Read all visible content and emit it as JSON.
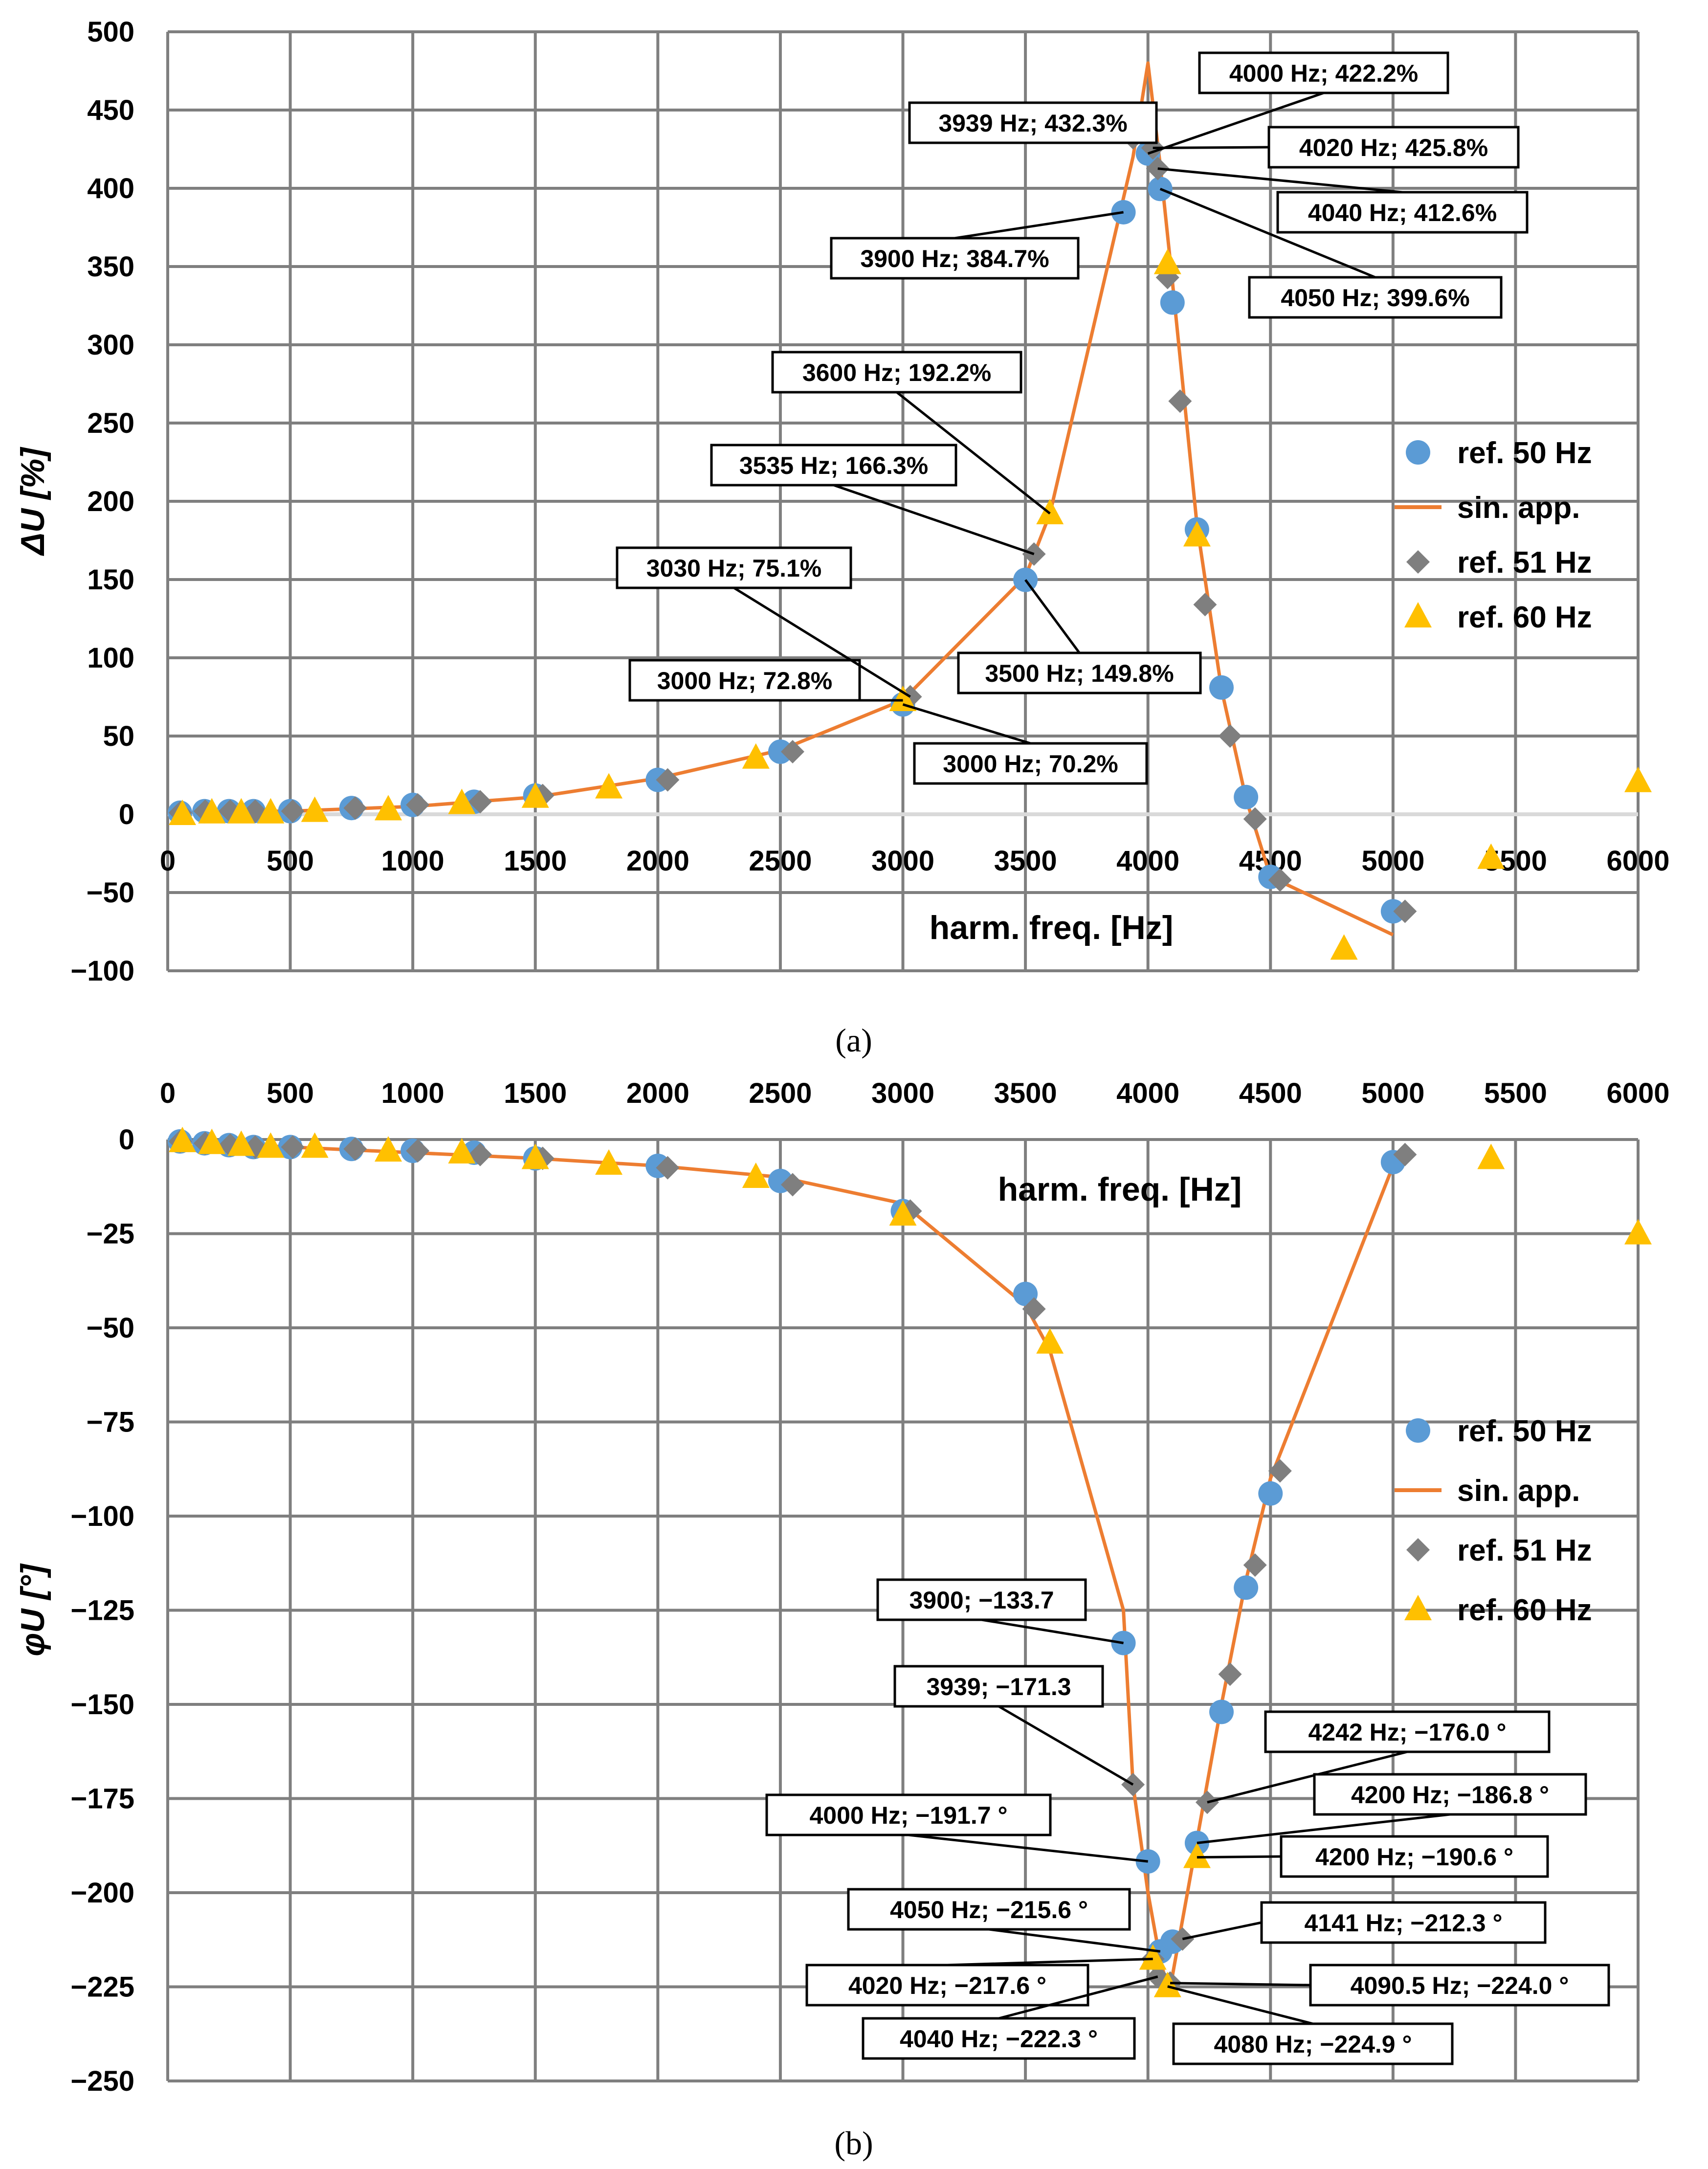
{
  "colors": {
    "ref50": "#5B9BD5",
    "sin_app": "#ED7D31",
    "ref51": "#7F7F7F",
    "ref60": "#FFC000",
    "grid": "#7F7F7F"
  },
  "legend": [
    "ref. 50 Hz",
    "sin. app.",
    "ref. 51 Hz",
    "ref. 60 Hz"
  ],
  "panel_labels": [
    "(a)",
    "(b)"
  ],
  "chart_data": [
    {
      "type": "scatter",
      "ylabel": "ΔU [%]",
      "xlabel": "harm. freq. [Hz]",
      "xlim": [
        0,
        6000
      ],
      "ylim": [
        -100,
        500
      ],
      "xticks": [
        0,
        500,
        1000,
        1500,
        2000,
        2500,
        3000,
        3500,
        4000,
        4500,
        5000,
        5500,
        6000
      ],
      "yticks": [
        -100,
        -50,
        0,
        50,
        100,
        150,
        200,
        250,
        300,
        350,
        400,
        450,
        500
      ],
      "grid": true,
      "legend_position": "right",
      "series": [
        {
          "name": "ref. 50 Hz",
          "marker": "circle",
          "x": [
            50,
            150,
            250,
            350,
            500,
            750,
            1000,
            1250,
            1500,
            2000,
            2500,
            3000,
            3500,
            3900,
            4000,
            4050,
            4100,
            4200,
            4300,
            4400,
            4500,
            5000
          ],
          "y": [
            1,
            2,
            2,
            2,
            2,
            4,
            6,
            8,
            12,
            22,
            40,
            70.2,
            149.8,
            384.7,
            422.2,
            399.6,
            327,
            182,
            81,
            11,
            -40,
            -62
          ]
        },
        {
          "name": "sin. app.",
          "marker": "line",
          "x": [
            50,
            250,
            500,
            1000,
            1500,
            2000,
            2500,
            3000,
            3500,
            3600,
            3939,
            4000,
            4050,
            4100,
            4200,
            4300,
            4400,
            4500,
            5000
          ],
          "y": [
            1,
            2,
            2,
            5,
            11,
            23,
            41,
            73,
            152,
            192,
            420,
            480,
            415,
            340,
            185,
            80,
            10,
            -40,
            -77
          ]
        },
        {
          "name": "ref. 51 Hz",
          "marker": "diamond",
          "x": [
            51,
            153,
            255,
            357,
            510,
            765,
            1020,
            1275,
            1530,
            2040,
            2550,
            3030,
            3535,
            3939,
            4020,
            4040,
            4080,
            4131,
            4233,
            4335,
            4437,
            4539,
            5049
          ],
          "y": [
            1,
            2,
            2,
            2,
            2,
            4,
            6,
            8,
            12,
            22,
            40,
            75.1,
            166.3,
            432.3,
            425.8,
            412.6,
            343,
            264,
            134,
            50,
            -3,
            -42,
            -62
          ]
        },
        {
          "name": "ref. 60 Hz",
          "marker": "triangle",
          "x": [
            60,
            180,
            300,
            420,
            600,
            900,
            1200,
            1500,
            1800,
            2400,
            3000,
            3600,
            4080,
            4200,
            4800,
            5400,
            6000
          ],
          "y": [
            0,
            1,
            1,
            1,
            2,
            3,
            7,
            11,
            17,
            36,
            72.8,
            192.2,
            352,
            178,
            -86,
            -28,
            21
          ]
        }
      ],
      "annotations": [
        "3000 Hz; 70.2%",
        "3000 Hz; 72.8%",
        "3030 Hz; 75.1%",
        "3500 Hz; 149.8%",
        "3535 Hz; 166.3%",
        "3600 Hz; 192.2%",
        "3900 Hz; 384.7%",
        "3939 Hz; 432.3%",
        "4000 Hz; 422.2%",
        "4020 Hz; 425.8%",
        "4040 Hz; 412.6%",
        "4050 Hz; 399.6%"
      ]
    },
    {
      "type": "scatter",
      "ylabel": "φU [°]",
      "xlabel": "harm. freq. [Hz]",
      "xlim": [
        0,
        6000
      ],
      "ylim": [
        -250,
        0
      ],
      "xticks": [
        0,
        500,
        1000,
        1500,
        2000,
        2500,
        3000,
        3500,
        4000,
        4500,
        5000,
        5500,
        6000
      ],
      "yticks": [
        -250,
        -225,
        -200,
        -175,
        -150,
        -125,
        -100,
        -75,
        -50,
        -25,
        0
      ],
      "grid": true,
      "legend_position": "right",
      "series": [
        {
          "name": "ref. 50 Hz",
          "marker": "circle",
          "x": [
            50,
            150,
            250,
            350,
            500,
            750,
            1000,
            1250,
            1500,
            2000,
            2500,
            3000,
            3500,
            3900,
            4000,
            4050,
            4100,
            4200,
            4300,
            4400,
            4500,
            5000
          ],
          "y": [
            -0.5,
            -1,
            -1.5,
            -2,
            -2,
            -2.5,
            -3,
            -3.5,
            -5,
            -7,
            -11,
            -19,
            -41,
            -133.7,
            -191.7,
            -215.6,
            -213,
            -186.8,
            -152,
            -119,
            -94,
            -6
          ]
        },
        {
          "name": "sin. app.",
          "marker": "line",
          "x": [
            50,
            500,
            1000,
            1500,
            2000,
            2500,
            3000,
            3500,
            3600,
            3900,
            3939,
            4000,
            4050,
            4080,
            4100,
            4200,
            4300,
            4400,
            4500,
            5000
          ],
          "y": [
            -0.5,
            -2,
            -3.5,
            -5,
            -7,
            -10,
            -17,
            -44,
            -56,
            -125,
            -171.3,
            -200,
            -218,
            -224.9,
            -222,
            -186,
            -150,
            -117,
            -90,
            -7
          ]
        },
        {
          "name": "ref. 51 Hz",
          "marker": "diamond",
          "x": [
            51,
            153,
            255,
            357,
            510,
            765,
            1020,
            1275,
            1530,
            2040,
            2550,
            3030,
            3535,
            3939,
            4020,
            4040,
            4090.5,
            4141,
            4242,
            4335,
            4437,
            4539,
            5049
          ],
          "y": [
            -0.5,
            -1,
            -1.5,
            -2,
            -2,
            -2.5,
            -3,
            -4,
            -5,
            -7.5,
            -12,
            -19,
            -45,
            -171.3,
            -217.6,
            -222.3,
            -224.0,
            -212.3,
            -176.0,
            -142,
            -113,
            -88,
            -4
          ]
        },
        {
          "name": "ref. 60 Hz",
          "marker": "triangle",
          "x": [
            60,
            180,
            300,
            420,
            600,
            900,
            1200,
            1500,
            1800,
            2400,
            3000,
            3600,
            4020,
            4080,
            4200,
            5400,
            6000
          ],
          "y": [
            -0.5,
            -1,
            -1.5,
            -2,
            -2,
            -3,
            -3.5,
            -5,
            -6.5,
            -10,
            -20,
            -54,
            -217.6,
            -224.9,
            -190.6,
            -5,
            -25
          ]
        }
      ],
      "annotations": [
        "3900; −133.7",
        "3939; −171.3",
        "4000 Hz; −191.7 °",
        "4242 Hz; −176.0 °",
        "4200 Hz; −186.8 °",
        "4200 Hz; −190.6 °",
        "4050 Hz; −215.6 °",
        "4141 Hz; −212.3 °",
        "4020 Hz; −217.6 °",
        "4090.5 Hz; −224.0 °",
        "4040 Hz; −222.3 °",
        "4080 Hz; −224.9 °"
      ]
    }
  ]
}
